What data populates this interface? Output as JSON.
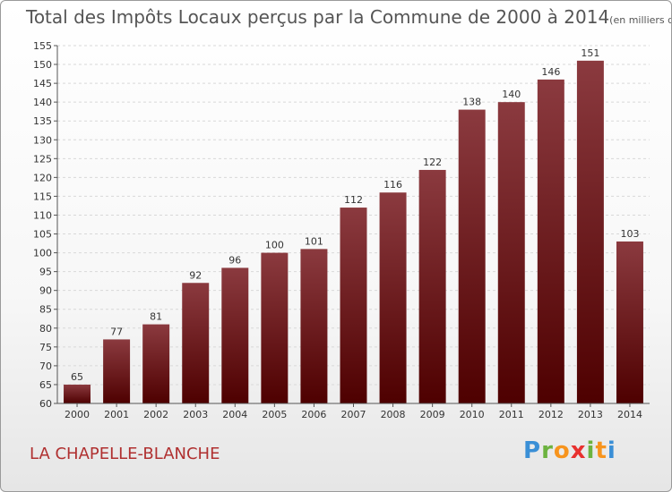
{
  "chart_data": {
    "type": "bar",
    "title": "Total des Impôts Locaux perçus par la Commune de 2000 à 2014",
    "unit_label": "(en milliers d'€)",
    "xlabel": "",
    "ylabel": "",
    "categories": [
      "2000",
      "2001",
      "2002",
      "2003",
      "2004",
      "2005",
      "2006",
      "2007",
      "2008",
      "2009",
      "2010",
      "2011",
      "2012",
      "2013",
      "2014"
    ],
    "values": [
      65,
      77,
      81,
      92,
      96,
      100,
      101,
      112,
      116,
      122,
      138,
      140,
      146,
      151,
      103
    ],
    "ylim": [
      60,
      155
    ],
    "ytick_step": 5,
    "grid": true,
    "bar_color_top": "#8b3a3f",
    "bar_color_bottom": "#4e0000"
  },
  "commune_name": "LA CHAPELLE-BLANCHE",
  "logo": {
    "letters": [
      "P",
      "r",
      "o",
      "x",
      "i",
      "t",
      "i"
    ],
    "colors": [
      "#3a8fd6",
      "#6cb33f",
      "#f7941d",
      "#e8312f",
      "#6cb33f",
      "#f7941d",
      "#3a8fd6"
    ]
  }
}
